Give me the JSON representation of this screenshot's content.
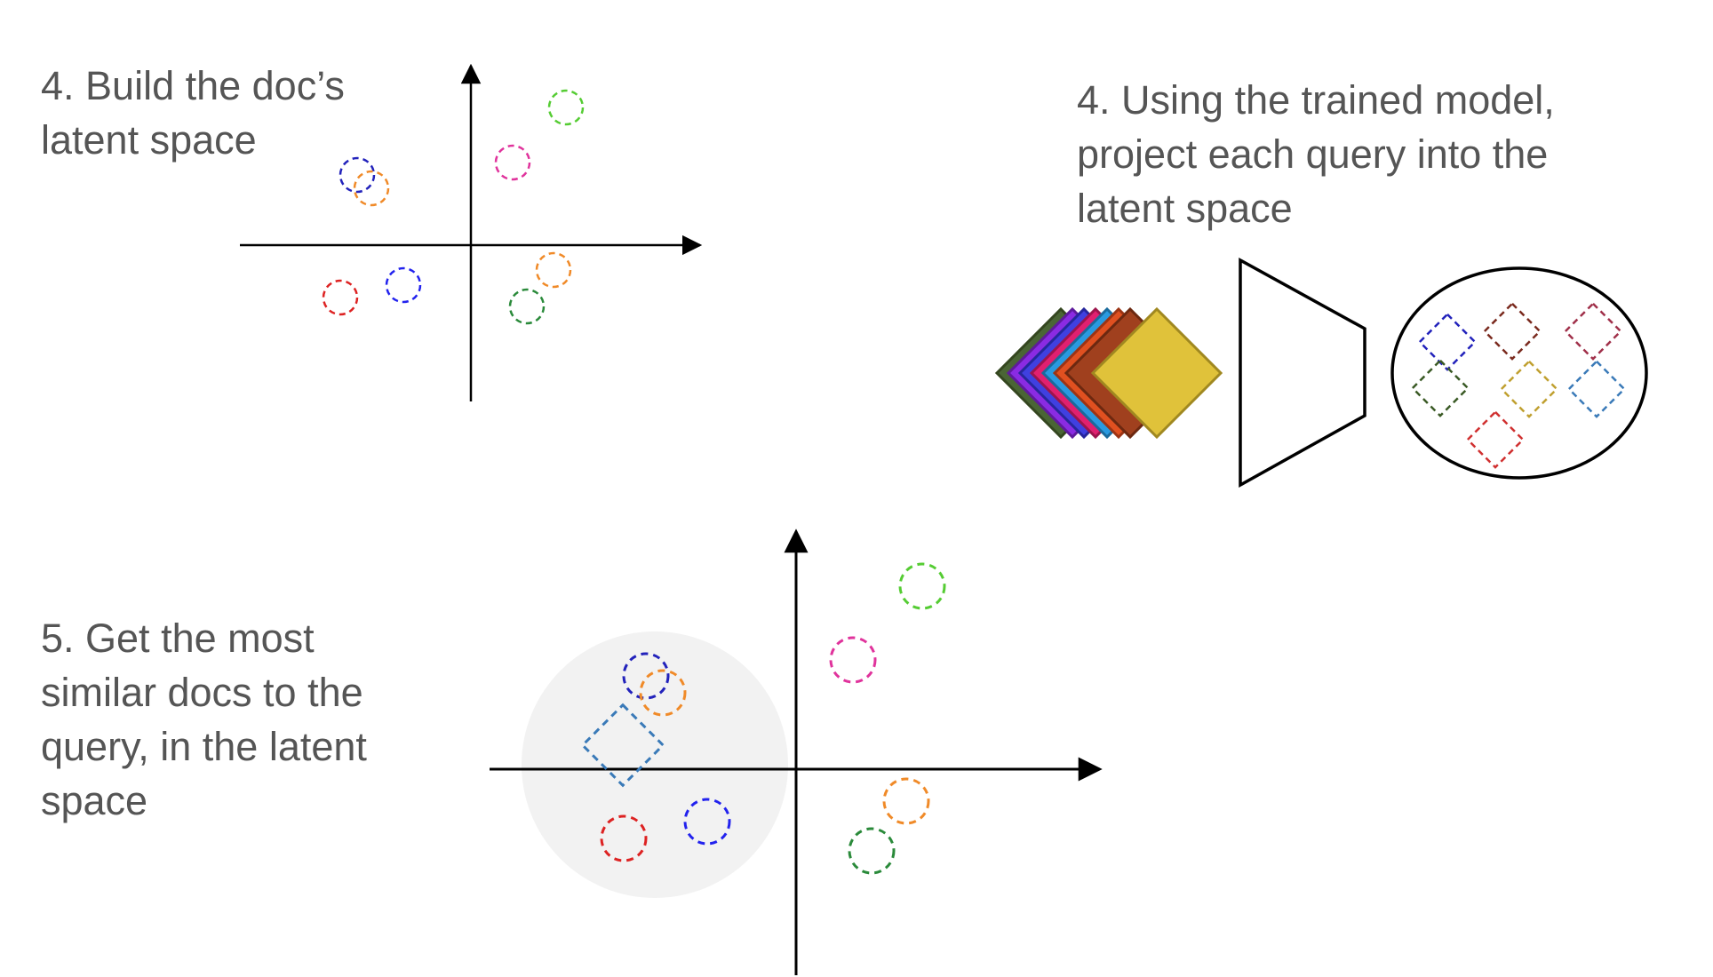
{
  "captions": {
    "build_latent": [
      "4. Build the doc’s",
      "latent space"
    ],
    "project_query": [
      "4. Using the trained model,",
      "project each query into the",
      "latent space"
    ],
    "similar_docs": [
      "5. Get the most",
      "similar docs to the",
      "query, in the latent",
      "space"
    ]
  },
  "colors": {
    "text": "#555555",
    "axis": "#000000",
    "highlight": "#f2f2f2",
    "green": "#55cc33",
    "magenta": "#e0339c",
    "navy": "#2222bb",
    "orange": "#f08a28",
    "red": "#dd2222",
    "blue": "#2222ee",
    "dark_green": "#2a8a3a",
    "steel_blue": "#3a7ab8",
    "gold": "#e0c23a"
  },
  "stack_colors": [
    "#4a6535",
    "#8a2be2",
    "#4040e0",
    "#e02070",
    "#2a9ae0",
    "#e05020",
    "#a0401e",
    "#e0c23a"
  ],
  "encoder_shape": "trapezoid-encoder",
  "latent_squares": [
    "navy",
    "dark-red",
    "crimson",
    "dark-olive",
    "gold",
    "steel-blue",
    "red"
  ]
}
